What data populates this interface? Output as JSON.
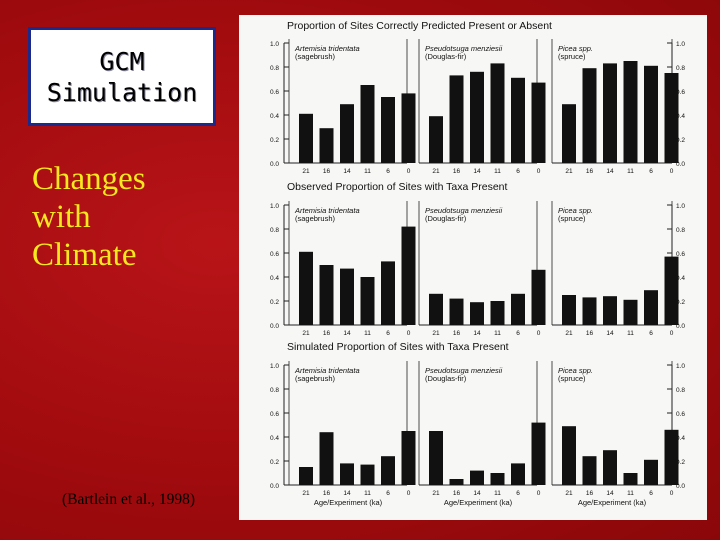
{
  "slide": {
    "title_lines": [
      "GCM",
      "Simulation"
    ],
    "subtitle_lines": [
      "Changes",
      "with",
      "Climate"
    ],
    "citation": "(Bartlein et al., 1998)",
    "colors": {
      "background": "#a30a0d",
      "subtitle": "#f5e81e",
      "title_border": "#1b2a8a",
      "bars": "#111111"
    }
  },
  "chart_data": [
    {
      "type": "bar",
      "title": "Proportion of Sites Correctly Predicted Present or Absent",
      "ylim": [
        0,
        1.0
      ],
      "yticks": [
        "0.0",
        "0.2",
        "0.4",
        "0.6",
        "0.8",
        "1.0"
      ],
      "categories": [
        "21",
        "16",
        "14",
        "11",
        "6",
        "0"
      ],
      "xlabel": "",
      "panels": [
        {
          "name": "Artemisia tridentata",
          "common": "(sagebrush)",
          "values": [
            0.41,
            0.29,
            0.49,
            0.65,
            0.55,
            0.58
          ]
        },
        {
          "name": "Pseudotsuga menziesii",
          "common": "(Douglas-fir)",
          "values": [
            0.39,
            0.73,
            0.76,
            0.83,
            0.71,
            0.67
          ]
        },
        {
          "name": "Picea spp.",
          "common": "(spruce)",
          "values": [
            0.49,
            0.79,
            0.83,
            0.85,
            0.81,
            0.75
          ]
        }
      ]
    },
    {
      "type": "bar",
      "title": "Observed Proportion of Sites with Taxa Present",
      "ylim": [
        0,
        1.0
      ],
      "yticks": [
        "0.0",
        "0.2",
        "0.4",
        "0.6",
        "0.8",
        "1.0"
      ],
      "categories": [
        "21",
        "16",
        "14",
        "11",
        "6",
        "0"
      ],
      "xlabel": "",
      "panels": [
        {
          "name": "Artemisia tridentata",
          "common": "(sagebrush)",
          "values": [
            0.61,
            0.5,
            0.47,
            0.4,
            0.53,
            0.82
          ]
        },
        {
          "name": "Pseudotsuga menziesii",
          "common": "(Douglas-fir)",
          "values": [
            0.26,
            0.22,
            0.19,
            0.2,
            0.26,
            0.46
          ]
        },
        {
          "name": "Picea spp.",
          "common": "(spruce)",
          "values": [
            0.25,
            0.23,
            0.24,
            0.21,
            0.29,
            0.57
          ]
        }
      ]
    },
    {
      "type": "bar",
      "title": "Simulated Proportion of Sites with Taxa Present",
      "ylim": [
        0,
        1.0
      ],
      "yticks": [
        "0.0",
        "0.2",
        "0.4",
        "0.6",
        "0.8",
        "1.0"
      ],
      "categories": [
        "21",
        "16",
        "14",
        "11",
        "6",
        "0"
      ],
      "xlabel": "Age/Experiment (ka)",
      "panels": [
        {
          "name": "Artemisia tridentata",
          "common": "(sagebrush)",
          "values": [
            0.15,
            0.44,
            0.18,
            0.17,
            0.24,
            0.45
          ]
        },
        {
          "name": "Pseudotsuga menziesii",
          "common": "(Douglas-fir)",
          "values": [
            0.45,
            0.05,
            0.12,
            0.1,
            0.18,
            0.52
          ]
        },
        {
          "name": "Picea spp.",
          "common": "(spruce)",
          "values": [
            0.49,
            0.24,
            0.29,
            0.1,
            0.21,
            0.46
          ]
        }
      ]
    }
  ]
}
